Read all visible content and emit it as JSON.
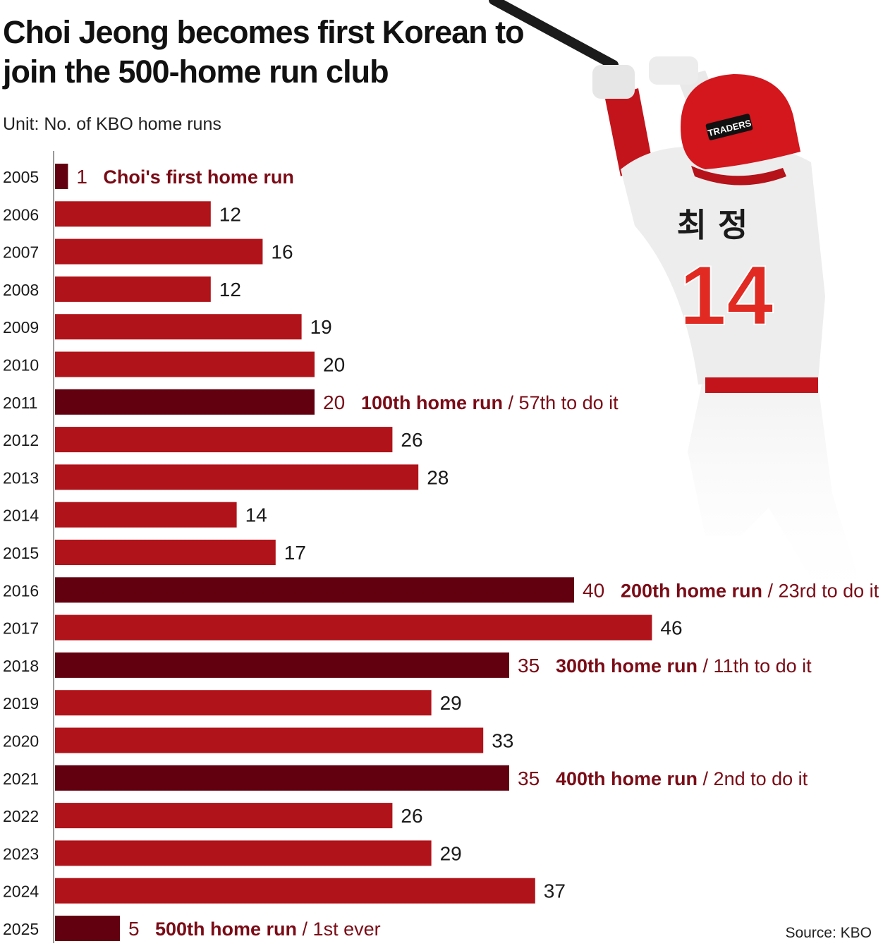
{
  "title": "Choi Jeong becomes first Korean to join the 500-home run club",
  "subtitle": "Unit: No. of KBO home runs",
  "source": "Source: KBO",
  "player_figure": {
    "helmet_text": "TRADERS",
    "jersey_name": "최 정",
    "jersey_number": "14"
  },
  "colors": {
    "bar": "#b01319",
    "milestone_bar": "#63000f",
    "milestone_text": "#7a0b16"
  },
  "chart_data": {
    "type": "bar",
    "orientation": "horizontal",
    "title": "Choi Jeong becomes first Korean to join the 500-home run club",
    "categories": [
      "2005",
      "2006",
      "2007",
      "2008",
      "2009",
      "2010",
      "2011",
      "2012",
      "2013",
      "2014",
      "2015",
      "2016",
      "2017",
      "2018",
      "2019",
      "2020",
      "2021",
      "2022",
      "2023",
      "2024",
      "2025"
    ],
    "values": [
      1,
      12,
      16,
      12,
      19,
      20,
      20,
      26,
      28,
      14,
      17,
      40,
      46,
      35,
      29,
      33,
      35,
      26,
      29,
      37,
      5
    ],
    "xlim": [
      0,
      46
    ],
    "grid": false,
    "annotations": [
      {
        "category": "2005",
        "bold": "Choi's first home run",
        "rest": ""
      },
      {
        "category": "2011",
        "bold": "100th home run",
        "rest": " / 57th to do it"
      },
      {
        "category": "2016",
        "bold": "200th home run",
        "rest": " / 23rd to do it"
      },
      {
        "category": "2018",
        "bold": "300th home run",
        "rest": " / 11th to do it"
      },
      {
        "category": "2021",
        "bold": "400th home run",
        "rest": " / 2nd to do it"
      },
      {
        "category": "2025",
        "bold": "500th home run",
        "rest": " / 1st ever"
      }
    ]
  }
}
